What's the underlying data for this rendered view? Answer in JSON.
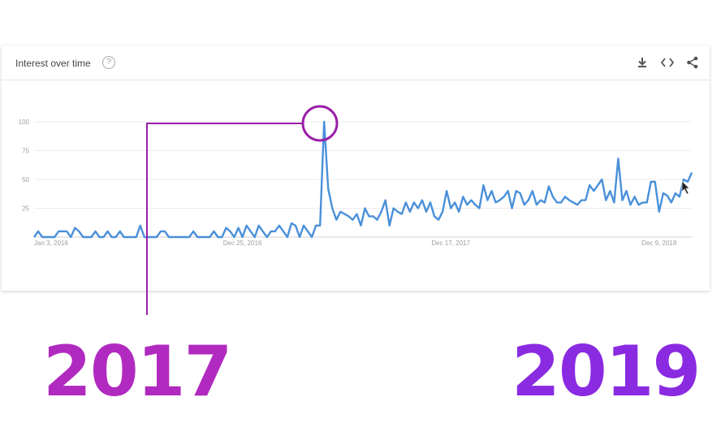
{
  "card": {
    "title": "Interest over time",
    "help_glyph": "?"
  },
  "icons": [
    "download-icon",
    "embed-icon",
    "share-icon"
  ],
  "colors": {
    "line": "#4a90d9",
    "annotation": "#9b1fa8",
    "year_2017": "#b12ac0",
    "year_2019": "#8a2be2"
  },
  "annotations": {
    "left_year": "2017",
    "right_year": "2019"
  },
  "chart_data": {
    "type": "line",
    "title": "Interest over time",
    "xlabel": "",
    "ylabel": "",
    "ylim": [
      0,
      100
    ],
    "y_ticks": [
      25,
      50,
      75,
      100
    ],
    "x_tick_labels": [
      "Jan 3, 2016",
      "Dec 25, 2016",
      "Dec 17, 2017",
      "Dec 9, 2018"
    ],
    "grid": true,
    "series": [
      {
        "values": [
          0,
          5,
          0,
          0,
          0,
          0,
          5,
          5,
          5,
          0,
          8,
          5,
          0,
          0,
          0,
          5,
          0,
          0,
          5,
          0,
          0,
          5,
          0,
          0,
          0,
          0,
          10,
          0,
          0,
          0,
          0,
          5,
          5,
          0,
          0,
          0,
          0,
          0,
          0,
          5,
          0,
          0,
          0,
          0,
          5,
          0,
          0,
          8,
          5,
          0,
          8,
          0,
          10,
          5,
          0,
          10,
          5,
          0,
          5,
          5,
          10,
          5,
          0,
          12,
          10,
          0,
          10,
          5,
          0,
          10,
          10,
          100,
          42,
          25,
          15,
          22,
          20,
          18,
          15,
          20,
          10,
          25,
          18,
          18,
          15,
          22,
          32,
          10,
          25,
          22,
          20,
          30,
          22,
          30,
          25,
          32,
          22,
          30,
          18,
          15,
          22,
          40,
          25,
          30,
          22,
          35,
          28,
          32,
          28,
          25,
          45,
          32,
          40,
          30,
          32,
          35,
          40,
          25,
          40,
          38,
          28,
          32,
          40,
          28,
          32,
          30,
          44,
          35,
          30,
          30,
          35,
          32,
          30,
          28,
          32,
          32,
          45,
          40,
          45,
          50,
          32,
          40,
          30,
          68,
          32,
          40,
          28,
          35,
          28,
          30,
          30,
          48,
          48,
          22,
          38,
          36,
          30,
          38,
          35,
          50,
          48,
          56
        ]
      }
    ]
  }
}
